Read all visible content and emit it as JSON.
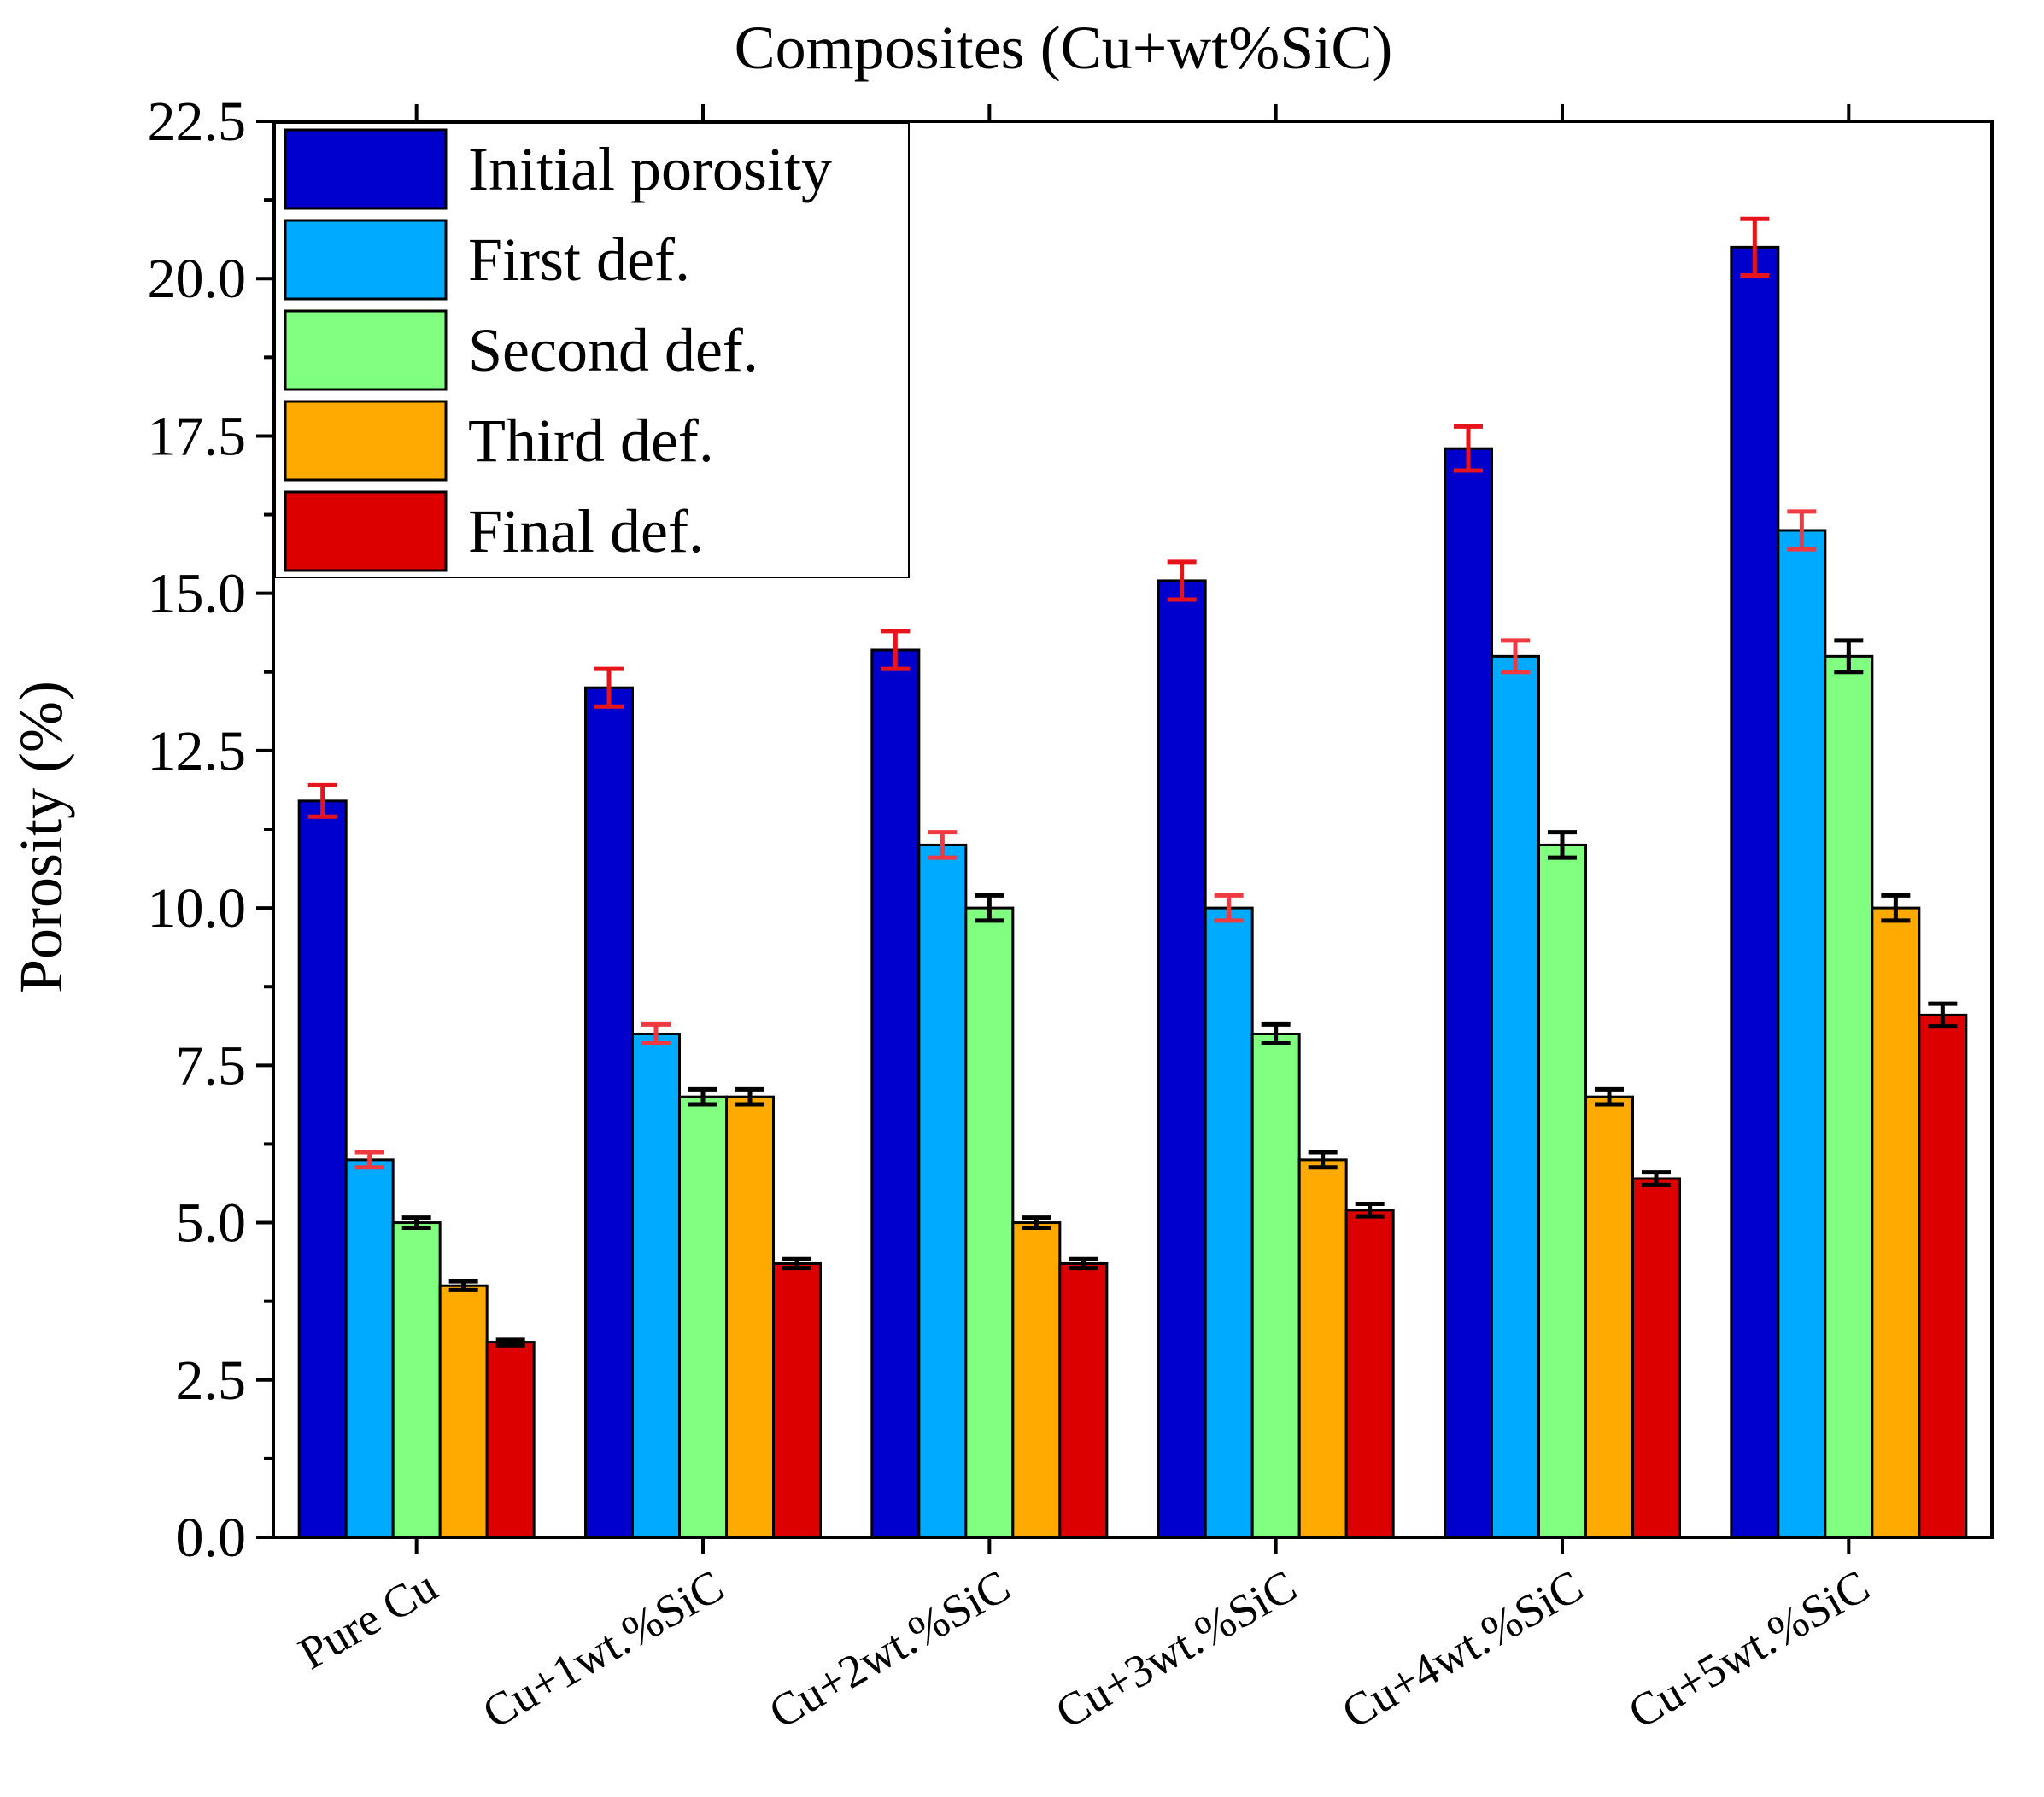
{
  "chart_data": {
    "type": "bar",
    "title": "Composites (Cu+wt%SiC)",
    "xlabel": "",
    "ylabel": "Porosity (%)",
    "ylim": [
      0,
      22.5
    ],
    "yticks": [
      "0.0",
      "2.5",
      "5.0",
      "7.5",
      "10.0",
      "12.5",
      "15.0",
      "17.5",
      "20.0",
      "22.5"
    ],
    "grid": false,
    "legend_position": "top-left",
    "categories": [
      "Pure Cu",
      "Cu+1wt.%SiC",
      "Cu+2wt.%SiC",
      "Cu+3wt.%SiC",
      "Cu+4wt.%SiC",
      "Cu+5wt.%SiC"
    ],
    "series": [
      {
        "name": "Initial porosity",
        "color": "#0000cc",
        "error_color": "#e8141c",
        "values": [
          11.7,
          13.5,
          14.1,
          15.2,
          17.3,
          20.5
        ],
        "errors": [
          0.25,
          0.3,
          0.3,
          0.3,
          0.35,
          0.45
        ]
      },
      {
        "name": "First def.",
        "color": "#00aaff",
        "error_color": "#ee3a40",
        "values": [
          6.0,
          8.0,
          11.0,
          10.0,
          14.0,
          16.0
        ],
        "errors": [
          0.12,
          0.15,
          0.2,
          0.2,
          0.25,
          0.3
        ]
      },
      {
        "name": "Second def.",
        "color": "#80ff80",
        "error_color": "#000000",
        "values": [
          5.0,
          7.0,
          10.0,
          8.0,
          11.0,
          14.0
        ],
        "errors": [
          0.08,
          0.12,
          0.2,
          0.15,
          0.2,
          0.25
        ]
      },
      {
        "name": "Third def.",
        "color": "#ffaa00",
        "error_color": "#000000",
        "values": [
          4.0,
          7.0,
          5.0,
          6.0,
          7.0,
          10.0
        ],
        "errors": [
          0.07,
          0.12,
          0.08,
          0.12,
          0.12,
          0.2
        ]
      },
      {
        "name": "Final def.",
        "color": "#dd0000",
        "error_color": "#000000",
        "values": [
          3.1,
          4.35,
          4.35,
          5.2,
          5.7,
          8.3
        ],
        "errors": [
          0.05,
          0.07,
          0.07,
          0.1,
          0.1,
          0.18
        ]
      }
    ]
  }
}
